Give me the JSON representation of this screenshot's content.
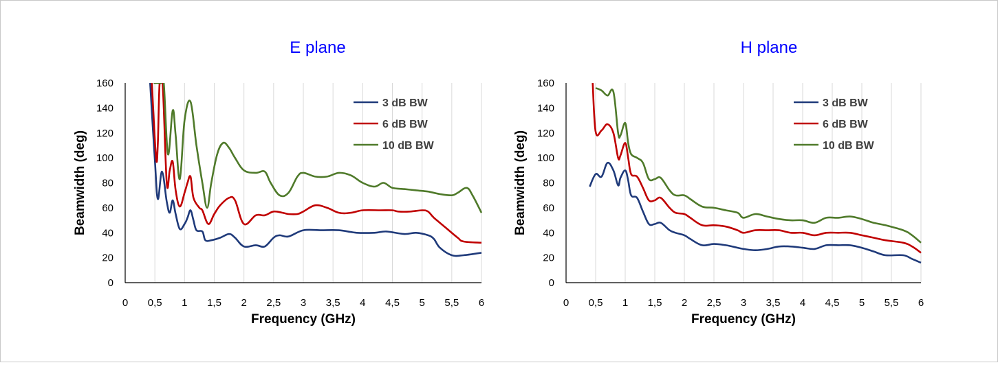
{
  "colors": {
    "series_3db": "#1f3a7a",
    "series_6db": "#c00000",
    "series_10db": "#4f7a2a",
    "title": "#0000ff",
    "grid": "#d9d9d9"
  },
  "chart_data": [
    {
      "type": "line",
      "title": "E plane",
      "xlabel": "Frequency  (GHz)",
      "ylabel": "Beamwidth  (deg)",
      "xlim": [
        0,
        6
      ],
      "ylim": [
        0,
        160
      ],
      "x_ticks": [
        "0",
        "0,5",
        "1",
        "1,5",
        "2",
        "2,5",
        "3",
        "3,5",
        "4",
        "4,5",
        "5",
        "5,5",
        "6"
      ],
      "y_ticks": [
        "0",
        "20",
        "40",
        "60",
        "80",
        "100",
        "120",
        "140",
        "160"
      ],
      "grid": "vertical",
      "legend": "top-right",
      "series": [
        {
          "name": "3 dB BW",
          "color": "#1f3a7a",
          "points": [
            [
              0.42,
              160
            ],
            [
              0.5,
              98
            ],
            [
              0.55,
              67
            ],
            [
              0.62,
              89
            ],
            [
              0.7,
              65
            ],
            [
              0.75,
              56
            ],
            [
              0.8,
              66
            ],
            [
              0.85,
              55
            ],
            [
              0.92,
              43
            ],
            [
              1.0,
              47
            ],
            [
              1.05,
              52
            ],
            [
              1.1,
              58
            ],
            [
              1.15,
              50
            ],
            [
              1.2,
              42
            ],
            [
              1.3,
              41
            ],
            [
              1.35,
              34
            ],
            [
              1.45,
              34
            ],
            [
              1.6,
              36
            ],
            [
              1.75,
              39
            ],
            [
              1.85,
              36
            ],
            [
              2.0,
              29
            ],
            [
              2.2,
              30
            ],
            [
              2.35,
              29
            ],
            [
              2.5,
              36
            ],
            [
              2.6,
              38
            ],
            [
              2.75,
              37
            ],
            [
              3.0,
              42
            ],
            [
              3.3,
              42
            ],
            [
              3.6,
              42
            ],
            [
              3.9,
              40
            ],
            [
              4.2,
              40
            ],
            [
              4.4,
              41
            ],
            [
              4.7,
              39
            ],
            [
              4.9,
              40
            ],
            [
              5.1,
              38
            ],
            [
              5.2,
              35
            ],
            [
              5.3,
              28
            ],
            [
              5.5,
              22
            ],
            [
              5.7,
              22
            ],
            [
              6.0,
              24
            ]
          ]
        },
        {
          "name": "6 dB BW",
          "color": "#c00000",
          "points": [
            [
              0.45,
              160
            ],
            [
              0.52,
              100
            ],
            [
              0.55,
              112
            ],
            [
              0.58,
              160
            ],
            [
              0.63,
              160
            ],
            [
              0.7,
              80
            ],
            [
              0.75,
              90
            ],
            [
              0.8,
              97
            ],
            [
              0.85,
              74
            ],
            [
              0.92,
              61
            ],
            [
              1.0,
              72
            ],
            [
              1.05,
              80
            ],
            [
              1.1,
              85
            ],
            [
              1.15,
              68
            ],
            [
              1.25,
              60
            ],
            [
              1.3,
              58
            ],
            [
              1.4,
              47
            ],
            [
              1.5,
              55
            ],
            [
              1.6,
              62
            ],
            [
              1.75,
              68
            ],
            [
              1.85,
              66
            ],
            [
              2.0,
              47
            ],
            [
              2.2,
              54
            ],
            [
              2.35,
              54
            ],
            [
              2.5,
              57
            ],
            [
              2.65,
              56
            ],
            [
              2.75,
              55
            ],
            [
              2.9,
              55
            ],
            [
              3.0,
              57
            ],
            [
              3.2,
              62
            ],
            [
              3.4,
              60
            ],
            [
              3.6,
              56
            ],
            [
              3.8,
              56
            ],
            [
              4.0,
              58
            ],
            [
              4.3,
              58
            ],
            [
              4.5,
              58
            ],
            [
              4.6,
              57
            ],
            [
              4.8,
              57
            ],
            [
              5.0,
              58
            ],
            [
              5.1,
              57
            ],
            [
              5.2,
              52
            ],
            [
              5.4,
              44
            ],
            [
              5.6,
              36
            ],
            [
              5.7,
              33
            ],
            [
              6.0,
              32
            ]
          ]
        },
        {
          "name": "10 dB BW",
          "color": "#4f7a2a",
          "points": [
            [
              0.48,
              160
            ],
            [
              0.52,
              160
            ],
            [
              0.6,
              160
            ],
            [
              0.65,
              160
            ],
            [
              0.72,
              103
            ],
            [
              0.8,
              138
            ],
            [
              0.85,
              118
            ],
            [
              0.92,
              83
            ],
            [
              1.0,
              130
            ],
            [
              1.1,
              145
            ],
            [
              1.2,
              110
            ],
            [
              1.3,
              80
            ],
            [
              1.38,
              60
            ],
            [
              1.45,
              80
            ],
            [
              1.55,
              103
            ],
            [
              1.65,
              112
            ],
            [
              1.75,
              108
            ],
            [
              1.85,
              100
            ],
            [
              2.0,
              90
            ],
            [
              2.2,
              88
            ],
            [
              2.35,
              89
            ],
            [
              2.45,
              80
            ],
            [
              2.6,
              70
            ],
            [
              2.75,
              72
            ],
            [
              2.9,
              85
            ],
            [
              3.0,
              88
            ],
            [
              3.2,
              85
            ],
            [
              3.4,
              85
            ],
            [
              3.6,
              88
            ],
            [
              3.8,
              86
            ],
            [
              4.0,
              80
            ],
            [
              4.2,
              77
            ],
            [
              4.35,
              80
            ],
            [
              4.5,
              76
            ],
            [
              4.7,
              75
            ],
            [
              4.9,
              74
            ],
            [
              5.1,
              73
            ],
            [
              5.3,
              71
            ],
            [
              5.5,
              70
            ],
            [
              5.6,
              72
            ],
            [
              5.75,
              76
            ],
            [
              5.85,
              70
            ],
            [
              6.0,
              56
            ]
          ]
        }
      ]
    },
    {
      "type": "line",
      "title": "H plane",
      "xlabel": "Frequency  (GHz)",
      "ylabel": "Beamwidth  (deg)",
      "xlim": [
        0,
        6
      ],
      "ylim": [
        0,
        160
      ],
      "x_ticks": [
        "0",
        "0,5",
        "1",
        "1,5",
        "2",
        "2,5",
        "3",
        "3,5",
        "4",
        "4,5",
        "5",
        "5,5",
        "6"
      ],
      "y_ticks": [
        "0",
        "20",
        "40",
        "60",
        "80",
        "100",
        "120",
        "140",
        "160"
      ],
      "grid": "vertical",
      "legend": "top-right",
      "series": [
        {
          "name": "3 dB BW",
          "color": "#1f3a7a",
          "points": [
            [
              0.4,
              77
            ],
            [
              0.5,
              87
            ],
            [
              0.6,
              85
            ],
            [
              0.7,
              96
            ],
            [
              0.8,
              90
            ],
            [
              0.88,
              78
            ],
            [
              0.92,
              84
            ],
            [
              1.0,
              90
            ],
            [
              1.05,
              82
            ],
            [
              1.1,
              70
            ],
            [
              1.2,
              68
            ],
            [
              1.3,
              57
            ],
            [
              1.4,
              47
            ],
            [
              1.5,
              47
            ],
            [
              1.6,
              48
            ],
            [
              1.75,
              42
            ],
            [
              1.85,
              40
            ],
            [
              2.0,
              38
            ],
            [
              2.1,
              35
            ],
            [
              2.3,
              30
            ],
            [
              2.5,
              31
            ],
            [
              2.7,
              30
            ],
            [
              2.9,
              28
            ],
            [
              3.0,
              27
            ],
            [
              3.2,
              26
            ],
            [
              3.4,
              27
            ],
            [
              3.6,
              29
            ],
            [
              3.8,
              29
            ],
            [
              4.0,
              28
            ],
            [
              4.2,
              27
            ],
            [
              4.4,
              30
            ],
            [
              4.6,
              30
            ],
            [
              4.8,
              30
            ],
            [
              5.0,
              28
            ],
            [
              5.2,
              25
            ],
            [
              5.4,
              22
            ],
            [
              5.7,
              22
            ],
            [
              5.85,
              19
            ],
            [
              6.0,
              16
            ]
          ]
        },
        {
          "name": "6 dB BW",
          "color": "#c00000",
          "points": [
            [
              0.45,
              160
            ],
            [
              0.5,
              121
            ],
            [
              0.6,
              122
            ],
            [
              0.7,
              127
            ],
            [
              0.8,
              120
            ],
            [
              0.88,
              100
            ],
            [
              0.92,
              102
            ],
            [
              1.0,
              112
            ],
            [
              1.05,
              100
            ],
            [
              1.1,
              87
            ],
            [
              1.2,
              85
            ],
            [
              1.3,
              76
            ],
            [
              1.4,
              66
            ],
            [
              1.5,
              66
            ],
            [
              1.6,
              68
            ],
            [
              1.75,
              60
            ],
            [
              1.85,
              56
            ],
            [
              2.0,
              55
            ],
            [
              2.1,
              52
            ],
            [
              2.3,
              46
            ],
            [
              2.5,
              46
            ],
            [
              2.7,
              45
            ],
            [
              2.9,
              42
            ],
            [
              3.0,
              40
            ],
            [
              3.2,
              42
            ],
            [
              3.4,
              42
            ],
            [
              3.6,
              42
            ],
            [
              3.8,
              40
            ],
            [
              4.0,
              40
            ],
            [
              4.2,
              38
            ],
            [
              4.4,
              40
            ],
            [
              4.6,
              40
            ],
            [
              4.8,
              40
            ],
            [
              5.0,
              38
            ],
            [
              5.2,
              36
            ],
            [
              5.4,
              34
            ],
            [
              5.7,
              32
            ],
            [
              5.85,
              29
            ],
            [
              6.0,
              24
            ]
          ]
        },
        {
          "name": "10 dB BW",
          "color": "#4f7a2a",
          "points": [
            [
              0.5,
              156
            ],
            [
              0.6,
              154
            ],
            [
              0.7,
              150
            ],
            [
              0.8,
              153
            ],
            [
              0.88,
              120
            ],
            [
              0.92,
              118
            ],
            [
              1.0,
              128
            ],
            [
              1.05,
              112
            ],
            [
              1.1,
              103
            ],
            [
              1.2,
              100
            ],
            [
              1.3,
              96
            ],
            [
              1.4,
              83
            ],
            [
              1.5,
              83
            ],
            [
              1.6,
              84
            ],
            [
              1.75,
              74
            ],
            [
              1.85,
              70
            ],
            [
              2.0,
              70
            ],
            [
              2.1,
              67
            ],
            [
              2.3,
              61
            ],
            [
              2.5,
              60
            ],
            [
              2.7,
              58
            ],
            [
              2.9,
              56
            ],
            [
              3.0,
              52
            ],
            [
              3.2,
              55
            ],
            [
              3.4,
              53
            ],
            [
              3.6,
              51
            ],
            [
              3.8,
              50
            ],
            [
              4.0,
              50
            ],
            [
              4.2,
              48
            ],
            [
              4.4,
              52
            ],
            [
              4.6,
              52
            ],
            [
              4.8,
              53
            ],
            [
              5.0,
              51
            ],
            [
              5.2,
              48
            ],
            [
              5.4,
              46
            ],
            [
              5.7,
              42
            ],
            [
              5.85,
              38
            ],
            [
              6.0,
              32
            ]
          ]
        }
      ]
    }
  ]
}
